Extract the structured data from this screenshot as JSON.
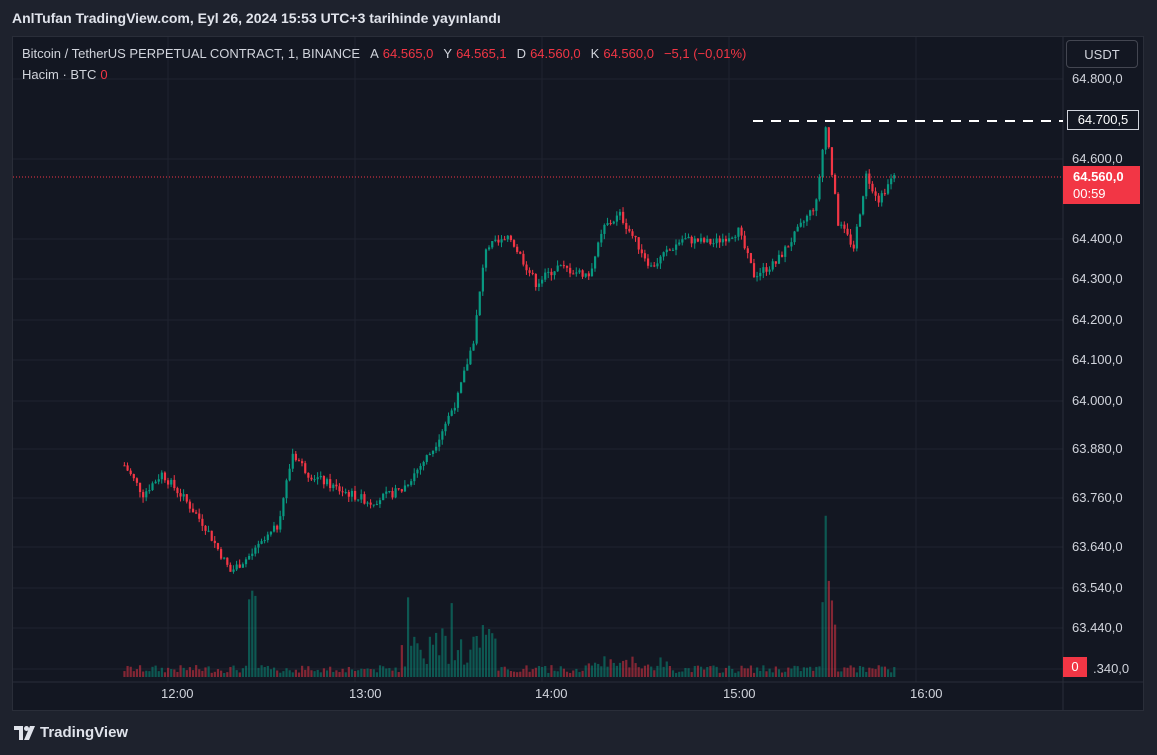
{
  "publication": "AnlTufan TradingView.com, Eyl 26, 2024 15:53 UTC+3 tarihinde yayınlandı",
  "legend": {
    "symbol": "Bitcoin / TetherUS PERPETUAL CONTRACT, 1, BINANCE",
    "a_label": "A",
    "a_value": "64.565,0",
    "y_label": "Y",
    "y_value": "64.565,1",
    "d_label": "D",
    "d_value": "64.560,0",
    "k_label": "K",
    "k_value": "64.560,0",
    "change": "−5,1 (−0,01%)",
    "volume_label": "Hacim · BTC",
    "volume_value": "0"
  },
  "currency_button": "USDT",
  "price_axis": [
    "64.800,0",
    "64.600,0",
    "64.400,0",
    "64.300,0",
    "64.200,0",
    "64.100,0",
    "64.000,0",
    "63.880,0",
    "63.760,0",
    "63.640,0",
    "63.540,0",
    "63.440,0",
    ".340,0"
  ],
  "time_axis": [
    "12:00",
    "13:00",
    "14:00",
    "15:00",
    "16:00"
  ],
  "high_tag": "64.700,5",
  "current_price": "64.560,0",
  "countdown": "00:59",
  "volume_tag": "0",
  "footer_brand": "TradingView",
  "colors": {
    "up": "#089981",
    "down": "#f23645",
    "background": "#131722",
    "grid": "#1f2330"
  },
  "chart_data": {
    "type": "candlestick",
    "symbol": "BTCUSDT.P",
    "interval": "1",
    "x_range": [
      "11:45",
      "15:53"
    ],
    "y_range": [
      63340,
      64800
    ],
    "close_path": [
      {
        "t": "11:46",
        "p": 63840
      },
      {
        "t": "11:52",
        "p": 63770
      },
      {
        "t": "11:58",
        "p": 63820
      },
      {
        "t": "12:05",
        "p": 63760
      },
      {
        "t": "12:12",
        "p": 63690
      },
      {
        "t": "12:20",
        "p": 63580
      },
      {
        "t": "12:28",
        "p": 63630
      },
      {
        "t": "12:35",
        "p": 63690
      },
      {
        "t": "12:40",
        "p": 63870
      },
      {
        "t": "12:45",
        "p": 63820
      },
      {
        "t": "12:55",
        "p": 63780
      },
      {
        "t": "13:05",
        "p": 63750
      },
      {
        "t": "13:15",
        "p": 63780
      },
      {
        "t": "13:25",
        "p": 63880
      },
      {
        "t": "13:33",
        "p": 64010
      },
      {
        "t": "13:38",
        "p": 64150
      },
      {
        "t": "13:42",
        "p": 64380
      },
      {
        "t": "13:50",
        "p": 64400
      },
      {
        "t": "13:58",
        "p": 64290
      },
      {
        "t": "14:05",
        "p": 64330
      },
      {
        "t": "14:15",
        "p": 64310
      },
      {
        "t": "14:20",
        "p": 64430
      },
      {
        "t": "14:25",
        "p": 64460
      },
      {
        "t": "14:35",
        "p": 64330
      },
      {
        "t": "14:45",
        "p": 64400
      },
      {
        "t": "14:55",
        "p": 64390
      },
      {
        "t": "15:03",
        "p": 64420
      },
      {
        "t": "15:08",
        "p": 64310
      },
      {
        "t": "15:15",
        "p": 64340
      },
      {
        "t": "15:22",
        "p": 64420
      },
      {
        "t": "15:28",
        "p": 64490
      },
      {
        "t": "15:31",
        "p": 64690
      },
      {
        "t": "15:35",
        "p": 64440
      },
      {
        "t": "15:40",
        "p": 64380
      },
      {
        "t": "15:44",
        "p": 64560
      },
      {
        "t": "15:48",
        "p": 64500
      },
      {
        "t": "15:53",
        "p": 64560
      }
    ],
    "high": 64700.5,
    "last": 64560.0
  }
}
